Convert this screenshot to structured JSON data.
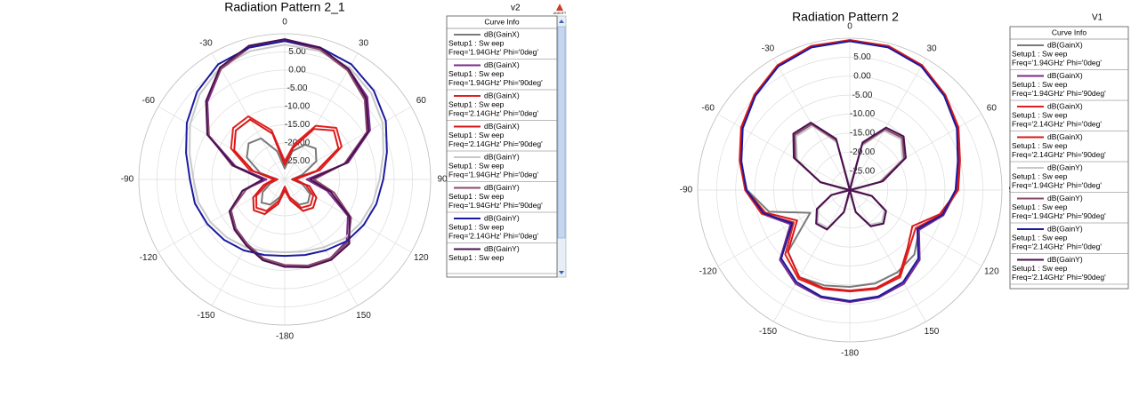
{
  "chart_data": [
    {
      "type": "polar",
      "title": "Radiation Pattern 2_1",
      "corner_label": "v2",
      "logo": "ANSOFT",
      "legend_title": "Curve Info",
      "x": [
        0,
        15,
        30,
        45,
        60,
        75,
        90,
        105,
        120,
        135,
        150,
        165,
        180,
        195,
        210,
        225,
        240,
        255,
        270,
        285,
        300,
        315,
        330,
        345
      ],
      "xticks": [
        0,
        30,
        60,
        90,
        120,
        150,
        -180,
        -150,
        -120,
        -90,
        -60,
        -30
      ],
      "ylim": [
        -30,
        10
      ],
      "yticks": [
        {
          "value": -25,
          "label": "-25.00"
        },
        {
          "value": -20,
          "label": "-20.00"
        },
        {
          "value": -15,
          "label": "-15.00"
        },
        {
          "value": -10,
          "label": "-10.00"
        },
        {
          "value": -5,
          "label": "-5.00"
        },
        {
          "value": 0,
          "label": "0.00"
        },
        {
          "value": 5,
          "label": "5.00"
        }
      ],
      "grid": true,
      "series": [
        {
          "name": "dB(GainX)",
          "setup": "Setup1 : Sw eep",
          "freq": "Freq='1.94GHz' Phi='0deg'",
          "color": "#7a7a7a",
          "values": [
            -27,
            -22,
            -19,
            -18,
            -20,
            -25,
            -28,
            -25,
            -22,
            -21,
            -22,
            -25,
            -28,
            -25,
            -22,
            -21,
            -23,
            -26,
            -28,
            -23,
            -18,
            -16,
            -17,
            -22
          ]
        },
        {
          "name": "dB(GainX)",
          "setup": "Setup1 : Sw eep",
          "freq": "Freq='1.94GHz' Phi='90deg'",
          "color": "#7b2a8b",
          "values": [
            8,
            7,
            5,
            2,
            -3,
            -12,
            -24,
            -18,
            -10,
            -6,
            -5,
            -5.5,
            -6,
            -7,
            -9,
            -11,
            -13,
            -18,
            -25,
            -16,
            -6,
            0,
            5,
            7.5
          ]
        },
        {
          "name": "dB(GainX)",
          "setup": "Setup1 : Sw eep",
          "freq": "Freq='2.14GHz' Phi='0deg'",
          "color": "#e02020",
          "values": [
            -25,
            -20,
            -13,
            -10,
            -12,
            -20,
            -27,
            -24,
            -21,
            -20,
            -21,
            -25,
            -28,
            -24,
            -20,
            -19,
            -21,
            -25,
            -28,
            -20,
            -13,
            -10,
            -10,
            -16
          ]
        },
        {
          "name": "dB(GainX)",
          "setup": "Setup1 : Sw eep",
          "freq": "Freq='2.14GHz' Phi='90deg'",
          "color": "#d81818",
          "values": [
            -26,
            -21,
            -14,
            -11,
            -13,
            -21,
            -28,
            -23,
            -20,
            -19,
            -20,
            -24,
            -27,
            -23,
            -19,
            -18,
            -20,
            -24,
            -27,
            -21,
            -14,
            -11,
            -11,
            -17
          ]
        },
        {
          "name": "dB(GainY)",
          "setup": "Setup1 : Sw eep",
          "freq": "Freq='1.94GHz' Phi='0deg'",
          "color": "#c8c8c8",
          "values": [
            7,
            6.5,
            5.5,
            3.5,
            1,
            -2,
            -4,
            -5,
            -6,
            -7,
            -8.5,
            -9.5,
            -10,
            -9.5,
            -8.5,
            -7.5,
            -6.5,
            -5.5,
            -5,
            -3,
            0,
            3,
            5.5,
            6.5
          ]
        },
        {
          "name": "dB(GainY)",
          "setup": "Setup1 : Sw eep",
          "freq": "Freq='1.94GHz' Phi='90deg'",
          "color": "#8b4a6b",
          "values": [
            8,
            7,
            4.5,
            1,
            -4,
            -13,
            -22,
            -16,
            -9,
            -5.5,
            -5,
            -5.5,
            -6.5,
            -7.5,
            -9.5,
            -11,
            -13,
            -19,
            -24,
            -15,
            -6,
            0.5,
            5,
            7.5
          ]
        },
        {
          "name": "dB(GainY)",
          "setup": "Setup1 : Sw eep",
          "freq": "Freq='2.14GHz' Phi='0deg'",
          "color": "#1a1aa0",
          "values": [
            8,
            7.5,
            6.5,
            4.5,
            2,
            -1,
            -3,
            -4,
            -5,
            -6,
            -7.5,
            -8.5,
            -9,
            -8.5,
            -7.5,
            -6.5,
            -5.5,
            -4.5,
            -4,
            -2,
            1,
            4,
            6.5,
            7.5
          ]
        },
        {
          "name": "dB(GainY)",
          "setup": "Setup1 : Sw eep",
          "color": "#4a1050",
          "values": [
            8.5,
            7.5,
            5,
            1.5,
            -3.5,
            -12.5,
            -23,
            -17,
            -9.5,
            -5,
            -4.5,
            -5,
            -6,
            -7,
            -9,
            -10.5,
            -12.5,
            -18,
            -24,
            -15.5,
            -5.5,
            0.5,
            5.5,
            8
          ]
        }
      ]
    },
    {
      "type": "polar",
      "title": "Radiation Pattern 2",
      "corner_label": "V1",
      "legend_title": "Curve Info",
      "x": [
        0,
        15,
        30,
        45,
        60,
        75,
        90,
        105,
        120,
        135,
        150,
        165,
        180,
        195,
        210,
        225,
        240,
        255,
        270,
        285,
        300,
        315,
        330,
        345
      ],
      "xticks": [
        0,
        30,
        60,
        90,
        120,
        150,
        -180,
        -150,
        -120,
        -90,
        -60,
        -30
      ],
      "ylim": [
        -30,
        10
      ],
      "yticks": [
        {
          "value": -25,
          "label": "-25.00"
        },
        {
          "value": -20,
          "label": "-20.00"
        },
        {
          "value": -15,
          "label": "-15.00"
        },
        {
          "value": -10,
          "label": "-10.00"
        },
        {
          "value": -5,
          "label": "-5.00"
        },
        {
          "value": 0,
          "label": "0.00"
        },
        {
          "value": 5,
          "label": "5.00"
        }
      ],
      "grid": true,
      "series": [
        {
          "name": "dB(GainX)",
          "setup": "Setup1 : Sw eep",
          "freq": "Freq='1.94GHz' Phi='0deg'",
          "color": "#7a7a7a",
          "values": [
            9.5,
            9.2,
            7.8,
            5.3,
            2.8,
            -0.2,
            -1.8,
            -4.5,
            -9,
            -6,
            -5,
            -4.5,
            -4.5,
            -4,
            -3.5,
            -7,
            -18,
            -8,
            -3,
            -0.3,
            2.8,
            5.3,
            7.8,
            9.2
          ]
        },
        {
          "name": "dB(GainX)",
          "setup": "Setup1 : Sw eep",
          "freq": "Freq='1.94GHz' Phi='90deg'",
          "color": "#7b2a8b",
          "values": [
            9.3,
            9,
            7.7,
            5.2,
            2.6,
            -0.5,
            -2,
            -4.5,
            -9,
            -4,
            -1.5,
            -0.7,
            -0.5,
            -0.7,
            -1.5,
            -4,
            -12,
            -6,
            -2.5,
            -0.3,
            2.6,
            5.2,
            7.7,
            9
          ]
        },
        {
          "name": "dB(GainX)",
          "setup": "Setup1 : Sw eep",
          "freq": "Freq='2.14GHz' Phi='0deg'",
          "color": "#e02020",
          "values": [
            9.5,
            9.3,
            8,
            5.5,
            3,
            0,
            -1.5,
            -5,
            -10,
            -8,
            -3.5,
            -3,
            -3.3,
            -3,
            -3,
            -6,
            -13,
            -6,
            -2.5,
            0,
            3,
            5.5,
            8,
            9.3
          ]
        },
        {
          "name": "dB(GainX)",
          "setup": "Setup1 : Sw eep",
          "freq": "Freq='2.14GHz' Phi='90deg'",
          "color": "#d81818",
          "values": [
            9.4,
            9.2,
            7.9,
            5.4,
            2.9,
            -0.1,
            -1.6,
            -5.5,
            -11,
            -8.5,
            -4,
            -3.3,
            -3.5,
            -3.3,
            -3.5,
            -7,
            -14,
            -7,
            -2.8,
            -0.2,
            2.9,
            5.4,
            7.9,
            9.2
          ]
        },
        {
          "name": "dB(GainY)",
          "setup": "Setup1 : Sw eep",
          "freq": "Freq='1.94GHz' Phi='0deg'",
          "color": "#c8c8c8",
          "values": [
            -29,
            -18,
            -12,
            -11,
            -14,
            -22,
            -29,
            -24,
            -19.5,
            -18,
            -19.5,
            -24,
            -29,
            -24,
            -18.5,
            -18,
            -20.5,
            -25,
            -29,
            -22,
            -14,
            -10,
            -10.5,
            -17
          ]
        },
        {
          "name": "dB(GainY)",
          "setup": "Setup1 : Sw eep",
          "freq": "Freq='1.94GHz' Phi='90deg'",
          "color": "#8b4a6b",
          "values": [
            -30,
            -17.5,
            -11.5,
            -10.5,
            -13.5,
            -21.5,
            -30,
            -24,
            -19,
            -17.5,
            -19,
            -24,
            -30,
            -24,
            -18,
            -17.5,
            -20,
            -25,
            -30,
            -22,
            -13.5,
            -9.5,
            -10,
            -16.5
          ]
        },
        {
          "name": "dB(GainY)",
          "setup": "Setup1 : Sw eep",
          "freq": "Freq='2.14GHz' Phi='0deg'",
          "color": "#1a1aa0",
          "values": [
            9.2,
            8.9,
            7.6,
            5.1,
            2.5,
            -0.6,
            -2.2,
            -4.8,
            -9.5,
            -4.5,
            -2,
            -1,
            -0.8,
            -1,
            -2,
            -4.5,
            -12.5,
            -6.5,
            -2.8,
            -0.5,
            2.5,
            5.1,
            7.6,
            8.9
          ]
        },
        {
          "name": "dB(GainY)",
          "setup": "Setup1 : Sw eep",
          "freq": "Freq='2.14GHz' Phi='90deg'",
          "color": "#4a1050",
          "values": [
            -30,
            -17,
            -11,
            -10,
            -13,
            -21,
            -30,
            -24,
            -19,
            -17.5,
            -19,
            -24,
            -30,
            -24,
            -18,
            -17.5,
            -20,
            -25,
            -30,
            -22,
            -13,
            -9,
            -9.5,
            -16
          ]
        }
      ]
    }
  ]
}
